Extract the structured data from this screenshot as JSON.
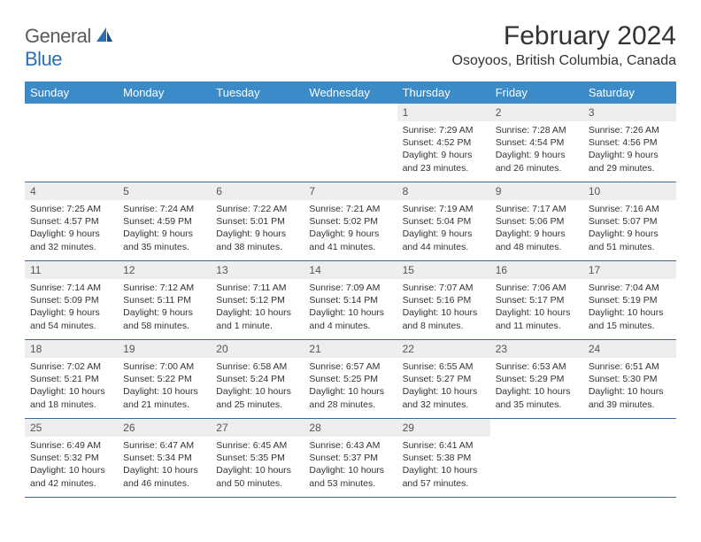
{
  "logo": {
    "text1": "General",
    "text2": "Blue"
  },
  "title": "February 2024",
  "location": "Osoyoos, British Columbia, Canada",
  "colors": {
    "header_bg": "#3b8bc9",
    "header_text": "#ffffff",
    "daynum_bg": "#eeeeee",
    "row_border": "#3b6a9a",
    "body_text": "#333333",
    "logo_gray": "#5a5a5a",
    "logo_blue": "#2d6fb5"
  },
  "day_labels": [
    "Sunday",
    "Monday",
    "Tuesday",
    "Wednesday",
    "Thursday",
    "Friday",
    "Saturday"
  ],
  "weeks": [
    [
      null,
      null,
      null,
      null,
      {
        "n": "1",
        "sr": "7:29 AM",
        "ss": "4:52 PM",
        "dl": "9 hours and 23 minutes."
      },
      {
        "n": "2",
        "sr": "7:28 AM",
        "ss": "4:54 PM",
        "dl": "9 hours and 26 minutes."
      },
      {
        "n": "3",
        "sr": "7:26 AM",
        "ss": "4:56 PM",
        "dl": "9 hours and 29 minutes."
      }
    ],
    [
      {
        "n": "4",
        "sr": "7:25 AM",
        "ss": "4:57 PM",
        "dl": "9 hours and 32 minutes."
      },
      {
        "n": "5",
        "sr": "7:24 AM",
        "ss": "4:59 PM",
        "dl": "9 hours and 35 minutes."
      },
      {
        "n": "6",
        "sr": "7:22 AM",
        "ss": "5:01 PM",
        "dl": "9 hours and 38 minutes."
      },
      {
        "n": "7",
        "sr": "7:21 AM",
        "ss": "5:02 PM",
        "dl": "9 hours and 41 minutes."
      },
      {
        "n": "8",
        "sr": "7:19 AM",
        "ss": "5:04 PM",
        "dl": "9 hours and 44 minutes."
      },
      {
        "n": "9",
        "sr": "7:17 AM",
        "ss": "5:06 PM",
        "dl": "9 hours and 48 minutes."
      },
      {
        "n": "10",
        "sr": "7:16 AM",
        "ss": "5:07 PM",
        "dl": "9 hours and 51 minutes."
      }
    ],
    [
      {
        "n": "11",
        "sr": "7:14 AM",
        "ss": "5:09 PM",
        "dl": "9 hours and 54 minutes."
      },
      {
        "n": "12",
        "sr": "7:12 AM",
        "ss": "5:11 PM",
        "dl": "9 hours and 58 minutes."
      },
      {
        "n": "13",
        "sr": "7:11 AM",
        "ss": "5:12 PM",
        "dl": "10 hours and 1 minute."
      },
      {
        "n": "14",
        "sr": "7:09 AM",
        "ss": "5:14 PM",
        "dl": "10 hours and 4 minutes."
      },
      {
        "n": "15",
        "sr": "7:07 AM",
        "ss": "5:16 PM",
        "dl": "10 hours and 8 minutes."
      },
      {
        "n": "16",
        "sr": "7:06 AM",
        "ss": "5:17 PM",
        "dl": "10 hours and 11 minutes."
      },
      {
        "n": "17",
        "sr": "7:04 AM",
        "ss": "5:19 PM",
        "dl": "10 hours and 15 minutes."
      }
    ],
    [
      {
        "n": "18",
        "sr": "7:02 AM",
        "ss": "5:21 PM",
        "dl": "10 hours and 18 minutes."
      },
      {
        "n": "19",
        "sr": "7:00 AM",
        "ss": "5:22 PM",
        "dl": "10 hours and 21 minutes."
      },
      {
        "n": "20",
        "sr": "6:58 AM",
        "ss": "5:24 PM",
        "dl": "10 hours and 25 minutes."
      },
      {
        "n": "21",
        "sr": "6:57 AM",
        "ss": "5:25 PM",
        "dl": "10 hours and 28 minutes."
      },
      {
        "n": "22",
        "sr": "6:55 AM",
        "ss": "5:27 PM",
        "dl": "10 hours and 32 minutes."
      },
      {
        "n": "23",
        "sr": "6:53 AM",
        "ss": "5:29 PM",
        "dl": "10 hours and 35 minutes."
      },
      {
        "n": "24",
        "sr": "6:51 AM",
        "ss": "5:30 PM",
        "dl": "10 hours and 39 minutes."
      }
    ],
    [
      {
        "n": "25",
        "sr": "6:49 AM",
        "ss": "5:32 PM",
        "dl": "10 hours and 42 minutes."
      },
      {
        "n": "26",
        "sr": "6:47 AM",
        "ss": "5:34 PM",
        "dl": "10 hours and 46 minutes."
      },
      {
        "n": "27",
        "sr": "6:45 AM",
        "ss": "5:35 PM",
        "dl": "10 hours and 50 minutes."
      },
      {
        "n": "28",
        "sr": "6:43 AM",
        "ss": "5:37 PM",
        "dl": "10 hours and 53 minutes."
      },
      {
        "n": "29",
        "sr": "6:41 AM",
        "ss": "5:38 PM",
        "dl": "10 hours and 57 minutes."
      },
      null,
      null
    ]
  ],
  "labels": {
    "sunrise": "Sunrise: ",
    "sunset": "Sunset: ",
    "daylight": "Daylight: "
  }
}
